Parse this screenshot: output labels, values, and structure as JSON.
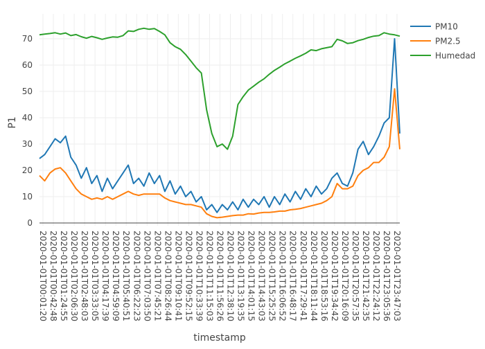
{
  "chart_data": {
    "type": "line",
    "title": "",
    "xlabel": "timestamp",
    "ylabel": "P1",
    "ylim": [
      -1,
      79
    ],
    "grid": true,
    "legend_placement": "top-right",
    "y_ticks": [
      0,
      10,
      20,
      30,
      40,
      50,
      60,
      70
    ],
    "x_ticks": [
      "2020-01-01T00:01:20",
      "2020-01-01T00:42:48",
      "2020-01-01T01:24:55",
      "2020-01-01T02:06:30",
      "2020-01-01T02:48:03",
      "2020-01-01T03:33:05",
      "2020-01-01T04:17:39",
      "2020-01-01T04:59:09",
      "2020-01-01T05:40:51",
      "2020-01-01T06:22:23",
      "2020-01-01T07:03:50",
      "2020-01-01T07:45:21",
      "2020-01-01T08:26:44",
      "2020-01-01T09:10:41",
      "2020-01-01T09:52:15",
      "2020-01-01T10:33:39",
      "2020-01-01T11:15:03",
      "2020-01-01T11:56:26",
      "2020-01-01T12:38:10",
      "2020-01-01T13:19:35",
      "2020-01-01T14:01:15",
      "2020-01-01T14:43:03",
      "2020-01-01T15:25:25",
      "2020-01-01T16:06:52",
      "2020-01-01T16:48:17",
      "2020-01-01T17:29:41",
      "2020-01-01T18:11:44",
      "2020-01-01T18:53:16",
      "2020-01-01T19:34:42",
      "2020-01-01T20:16:09",
      "2020-01-01T20:57:35",
      "2020-01-01T21:42:35",
      "2020-01-01T22:24:12",
      "2020-01-01T23:05:36",
      "2020-01-01T23:47:03"
    ],
    "x_note": "values sampled evenly across the time span from 00:00 to ~24:00",
    "series": [
      {
        "name": "PM10",
        "color": "#1f77b4",
        "values": [
          24.5,
          26,
          29,
          32,
          30.5,
          33,
          25,
          22,
          17,
          21,
          15,
          18,
          12,
          17,
          13,
          16,
          19,
          22,
          15,
          17,
          14,
          19,
          15,
          18,
          12,
          16,
          11,
          14,
          10,
          12,
          8,
          10,
          5,
          7,
          4,
          7,
          5,
          8,
          5,
          9,
          6,
          9,
          7,
          10,
          6,
          10,
          7,
          11,
          8,
          12,
          9,
          13,
          10,
          14,
          11,
          13,
          17,
          19,
          15,
          14,
          19,
          28,
          31,
          26,
          29,
          33,
          38,
          40,
          70,
          34
        ]
      },
      {
        "name": "PM2.5",
        "color": "#ff7f0e",
        "values": [
          18,
          16,
          19,
          20.5,
          21,
          19,
          16,
          13,
          11,
          10,
          9,
          9.5,
          9,
          10,
          9,
          10,
          11,
          12,
          11,
          10.5,
          11,
          11,
          11,
          11,
          9.5,
          8.5,
          8,
          7.5,
          7,
          7,
          6.5,
          6,
          3.5,
          2.5,
          2,
          2.2,
          2.5,
          2.8,
          3,
          3,
          3.5,
          3.4,
          3.8,
          4,
          4,
          4.2,
          4.5,
          4.5,
          5,
          5.2,
          5.5,
          6,
          6.5,
          7,
          7.5,
          8.5,
          10,
          15,
          13,
          13,
          14,
          18,
          20,
          21,
          23,
          23,
          25,
          29,
          51,
          28
        ]
      },
      {
        "name": "Humedad",
        "color": "#2ca02c",
        "values": [
          71.5,
          71.8,
          72,
          72.3,
          71.8,
          72.2,
          71.2,
          71.6,
          70.8,
          70.2,
          70.9,
          70.4,
          69.8,
          70.3,
          70.7,
          70.6,
          71.2,
          73,
          72.8,
          73.6,
          74,
          73.6,
          73.9,
          72.8,
          71.5,
          68.5,
          67,
          66,
          64,
          61.5,
          59,
          57,
          43,
          34,
          29,
          30,
          28,
          33,
          45,
          48,
          50.5,
          52,
          53.5,
          54.8,
          56.5,
          58,
          59.2,
          60.5,
          61.5,
          62.6,
          63.5,
          64.5,
          65.8,
          65.5,
          66.2,
          66.6,
          67,
          69.8,
          69.2,
          68.2,
          68.5,
          69.3,
          69.8,
          70.5,
          71,
          71.2,
          72.3,
          71.8,
          71.5,
          71
        ]
      }
    ]
  }
}
